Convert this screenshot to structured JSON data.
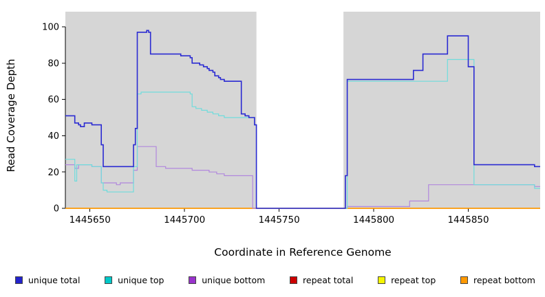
{
  "chart_data": {
    "type": "line",
    "step": true,
    "title": "",
    "xlabel": "Coordinate in Reference Genome",
    "ylabel": "Read Coverage Depth",
    "xlim": [
      1445637,
      1445888
    ],
    "ylim": [
      0,
      100
    ],
    "x_ticks": [
      1445650,
      1445700,
      1445750,
      1445800,
      1445850
    ],
    "y_ticks": [
      0,
      20,
      40,
      60,
      80,
      100
    ],
    "grid": false,
    "plot_background": "#d6d6d6",
    "gap_region": {
      "x0": 1445738,
      "x1": 1445784,
      "color": "#ffffff"
    },
    "axis_color": "#000000",
    "series": [
      {
        "name": "repeat total",
        "color": "#cc0000",
        "width": 1.2,
        "points": [
          [
            1445637,
            0
          ],
          [
            1445888,
            0
          ]
        ]
      },
      {
        "name": "repeat top",
        "color": "#f0f000",
        "width": 1.2,
        "points": [
          [
            1445637,
            0
          ],
          [
            1445888,
            0
          ]
        ]
      },
      {
        "name": "repeat bottom",
        "color": "#ff9900",
        "width": 1.4,
        "points": [
          [
            1445637,
            0
          ],
          [
            1445888,
            0
          ]
        ]
      },
      {
        "name": "unique bottom",
        "color": "#b187dd",
        "width": 1.2,
        "points": [
          [
            1445637,
            24
          ],
          [
            1445642,
            22
          ],
          [
            1445644,
            24
          ],
          [
            1445650,
            24
          ],
          [
            1445651,
            23
          ],
          [
            1445655,
            23
          ],
          [
            1445656,
            14
          ],
          [
            1445663,
            14
          ],
          [
            1445664,
            13
          ],
          [
            1445666,
            14
          ],
          [
            1445671,
            14
          ],
          [
            1445673,
            21
          ],
          [
            1445675,
            34
          ],
          [
            1445684,
            34
          ],
          [
            1445685,
            23
          ],
          [
            1445689,
            23
          ],
          [
            1445690,
            22
          ],
          [
            1445703,
            22
          ],
          [
            1445704,
            21
          ],
          [
            1445712,
            21
          ],
          [
            1445713,
            20
          ],
          [
            1445716,
            20
          ],
          [
            1445717,
            19
          ],
          [
            1445720,
            19
          ],
          [
            1445721,
            18
          ],
          [
            1445735,
            18
          ],
          [
            1445736,
            0
          ],
          [
            1445784,
            0
          ],
          [
            1445786,
            1
          ],
          [
            1445818,
            1
          ],
          [
            1445819,
            4
          ],
          [
            1445828,
            4
          ],
          [
            1445829,
            13
          ],
          [
            1445884,
            13
          ],
          [
            1445885,
            12
          ],
          [
            1445888,
            12
          ]
        ]
      },
      {
        "name": "unique top",
        "color": "#6fdcdc",
        "width": 1.2,
        "points": [
          [
            1445637,
            27
          ],
          [
            1445641,
            27
          ],
          [
            1445642,
            15
          ],
          [
            1445643,
            24
          ],
          [
            1445650,
            24
          ],
          [
            1445651,
            23
          ],
          [
            1445655,
            23
          ],
          [
            1445656,
            14
          ],
          [
            1445657,
            10
          ],
          [
            1445659,
            9
          ],
          [
            1445671,
            9
          ],
          [
            1445673,
            23
          ],
          [
            1445675,
            63
          ],
          [
            1445677,
            64
          ],
          [
            1445702,
            64
          ],
          [
            1445703,
            63
          ],
          [
            1445704,
            56
          ],
          [
            1445706,
            55
          ],
          [
            1445709,
            54
          ],
          [
            1445712,
            53
          ],
          [
            1445715,
            52
          ],
          [
            1445718,
            51
          ],
          [
            1445721,
            50
          ],
          [
            1445736,
            50
          ],
          [
            1445737,
            46
          ],
          [
            1445738,
            0
          ],
          [
            1445784,
            0
          ],
          [
            1445786,
            70
          ],
          [
            1445838,
            70
          ],
          [
            1445839,
            82
          ],
          [
            1445851,
            82
          ],
          [
            1445853,
            13
          ],
          [
            1445884,
            13
          ],
          [
            1445885,
            11
          ],
          [
            1445888,
            11
          ]
        ]
      },
      {
        "name": "unique total",
        "color": "#2a2ad2",
        "width": 1.6,
        "points": [
          [
            1445637,
            51
          ],
          [
            1445641,
            51
          ],
          [
            1445642,
            47
          ],
          [
            1445644,
            46
          ],
          [
            1445645,
            45
          ],
          [
            1445647,
            47
          ],
          [
            1445650,
            47
          ],
          [
            1445651,
            46
          ],
          [
            1445655,
            46
          ],
          [
            1445656,
            35
          ],
          [
            1445657,
            23
          ],
          [
            1445671,
            23
          ],
          [
            1445673,
            35
          ],
          [
            1445674,
            44
          ],
          [
            1445675,
            97
          ],
          [
            1445679,
            97
          ],
          [
            1445680,
            98
          ],
          [
            1445681,
            97
          ],
          [
            1445682,
            85
          ],
          [
            1445697,
            85
          ],
          [
            1445698,
            84
          ],
          [
            1445702,
            84
          ],
          [
            1445703,
            83
          ],
          [
            1445704,
            80
          ],
          [
            1445707,
            80
          ],
          [
            1445708,
            79
          ],
          [
            1445710,
            78
          ],
          [
            1445712,
            77
          ],
          [
            1445713,
            76
          ],
          [
            1445715,
            75
          ],
          [
            1445716,
            73
          ],
          [
            1445718,
            72
          ],
          [
            1445719,
            71
          ],
          [
            1445721,
            70
          ],
          [
            1445729,
            70
          ],
          [
            1445730,
            52
          ],
          [
            1445732,
            51
          ],
          [
            1445734,
            50
          ],
          [
            1445736,
            50
          ],
          [
            1445737,
            46
          ],
          [
            1445738,
            0
          ],
          [
            1445784,
            0
          ],
          [
            1445785,
            18
          ],
          [
            1445786,
            71
          ],
          [
            1445820,
            71
          ],
          [
            1445821,
            76
          ],
          [
            1445825,
            76
          ],
          [
            1445826,
            85
          ],
          [
            1445838,
            85
          ],
          [
            1445839,
            95
          ],
          [
            1445849,
            95
          ],
          [
            1445850,
            78
          ],
          [
            1445852,
            78
          ],
          [
            1445853,
            24
          ],
          [
            1445884,
            24
          ],
          [
            1445885,
            23
          ],
          [
            1445888,
            23
          ]
        ]
      }
    ],
    "legend": [
      {
        "label": "unique total",
        "color": "#2323cc"
      },
      {
        "label": "unique top",
        "color": "#00c8c8"
      },
      {
        "label": "unique bottom",
        "color": "#9933cc"
      },
      {
        "label": "repeat total",
        "color": "#cc0000"
      },
      {
        "label": "repeat top",
        "color": "#f5f500"
      },
      {
        "label": "repeat bottom",
        "color": "#ff9900"
      }
    ],
    "legend_position": "bottom"
  }
}
